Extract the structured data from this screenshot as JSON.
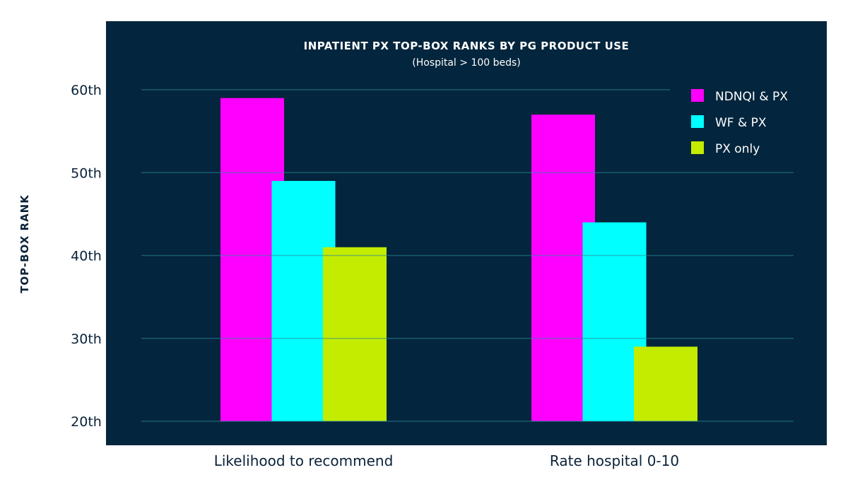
{
  "chart_data": {
    "type": "bar",
    "title": "INPATIENT PX TOP-BOX RANKS BY PG PRODUCT USE",
    "subtitle": "(Hospital > 100 beds)",
    "xlabel": "",
    "ylabel": "TOP-BOX RANK",
    "ylim": [
      20,
      60
    ],
    "yticks": [
      {
        "value": 60,
        "label": "60th"
      },
      {
        "value": 50,
        "label": "50th"
      },
      {
        "value": 40,
        "label": "40th"
      },
      {
        "value": 30,
        "label": "30th"
      },
      {
        "value": 20,
        "label": "20th"
      }
    ],
    "grid": true,
    "legend_position": "top-right",
    "categories": [
      "Likelihood to recommend",
      "Rate hospital 0-10"
    ],
    "series": [
      {
        "name": "NDNQI & PX",
        "color": "#ff00ff",
        "values": [
          59,
          57
        ]
      },
      {
        "name": "WF & PX",
        "color": "#00ffff",
        "values": [
          49,
          44
        ]
      },
      {
        "name": "PX only",
        "color": "#c3ec00",
        "values": [
          41,
          29
        ]
      }
    ],
    "panel_color": "#03253d"
  }
}
